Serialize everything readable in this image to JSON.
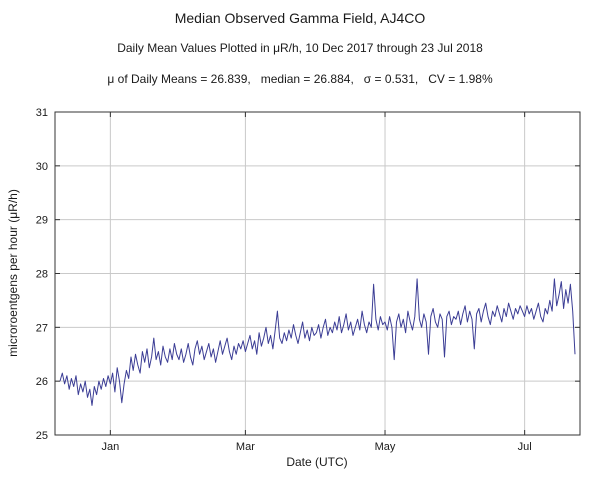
{
  "chart_data": {
    "type": "line",
    "title": "Median Observed Gamma Field, AJ4CO",
    "subtitle": "Daily Mean Values Plotted in μR/h, 10 Dec 2017 through 23 Jul 2018",
    "stats_text": "μ of Daily Means = 26.839,   median = 26.884,   σ = 0.531,   CV = 1.98%",
    "stats": {
      "mean": 26.839,
      "median": 26.884,
      "sigma": 0.531,
      "cv_percent": 1.98
    },
    "xlabel": "Date (UTC)",
    "ylabel": "microroentgens per hour (μR/h)",
    "x_start_date": "2017-12-10",
    "x_end_date": "2018-07-23",
    "x_day_range": [
      0,
      225
    ],
    "ylim": [
      25,
      31
    ],
    "y_ticks": [
      25,
      26,
      27,
      28,
      29,
      30,
      31
    ],
    "x_ticks": [
      {
        "day": 22,
        "label": "Jan"
      },
      {
        "day": 81,
        "label": "Mar"
      },
      {
        "day": 142,
        "label": "May"
      },
      {
        "day": 203,
        "label": "Jul"
      }
    ],
    "grid": true,
    "line_color": "#3b3d95",
    "grid_color": "#c9c9c9",
    "frame_color": "#333333",
    "values": [
      26.0,
      26.15,
      25.95,
      26.1,
      25.85,
      26.05,
      25.9,
      26.1,
      25.75,
      25.95,
      25.8,
      26.0,
      25.7,
      25.85,
      25.55,
      25.9,
      25.75,
      26.0,
      25.85,
      26.05,
      25.9,
      26.1,
      25.95,
      26.15,
      25.8,
      26.25,
      26.0,
      25.6,
      25.95,
      26.2,
      26.05,
      26.45,
      26.2,
      26.5,
      26.3,
      26.15,
      26.55,
      26.35,
      26.6,
      26.25,
      26.45,
      26.8,
      26.4,
      26.55,
      26.3,
      26.65,
      26.45,
      26.35,
      26.6,
      26.4,
      26.7,
      26.5,
      26.4,
      26.6,
      26.35,
      26.5,
      26.7,
      26.45,
      26.3,
      26.6,
      26.75,
      26.5,
      26.65,
      26.4,
      26.55,
      26.7,
      26.45,
      26.6,
      26.35,
      26.55,
      26.75,
      26.5,
      26.65,
      26.8,
      26.55,
      26.4,
      26.65,
      26.5,
      26.7,
      26.6,
      26.75,
      26.55,
      26.7,
      26.85,
      26.6,
      26.75,
      26.5,
      26.9,
      26.65,
      26.8,
      27.0,
      26.7,
      26.85,
      26.6,
      26.95,
      27.3,
      26.8,
      26.7,
      26.9,
      26.75,
      26.95,
      26.8,
      27.05,
      26.85,
      26.7,
      26.9,
      27.1,
      26.8,
      26.95,
      26.75,
      27.0,
      26.85,
      26.9,
      27.05,
      26.8,
      27.0,
      27.15,
      26.85,
      27.0,
      26.9,
      27.1,
      26.95,
      27.2,
      26.9,
      27.05,
      27.25,
      26.95,
      27.1,
      26.85,
      27.0,
      27.15,
      26.95,
      27.3,
      27.05,
      26.9,
      27.1,
      27.0,
      27.8,
      27.15,
      26.95,
      27.2,
      27.05,
      27.1,
      26.95,
      27.2,
      27.0,
      26.4,
      27.1,
      27.25,
      27.0,
      27.15,
      26.9,
      27.3,
      27.1,
      26.95,
      27.2,
      27.9,
      27.15,
      27.0,
      27.25,
      27.1,
      26.5,
      27.2,
      27.35,
      27.1,
      27.0,
      27.25,
      27.15,
      26.45,
      27.2,
      27.3,
      27.05,
      27.2,
      27.15,
      27.3,
      27.05,
      27.25,
      27.4,
      27.1,
      27.3,
      27.15,
      26.6,
      27.25,
      27.35,
      27.1,
      27.3,
      27.45,
      27.2,
      27.05,
      27.3,
      27.2,
      27.4,
      27.25,
      27.1,
      27.35,
      27.2,
      27.45,
      27.3,
      27.15,
      27.35,
      27.25,
      27.4,
      27.3,
      27.2,
      27.4,
      27.25,
      27.35,
      27.15,
      27.3,
      27.45,
      27.2,
      27.1,
      27.35,
      27.25,
      27.5,
      27.3,
      27.9,
      27.4,
      27.6,
      27.85,
      27.35,
      27.7,
      27.45,
      27.8,
      27.3,
      26.5
    ]
  }
}
